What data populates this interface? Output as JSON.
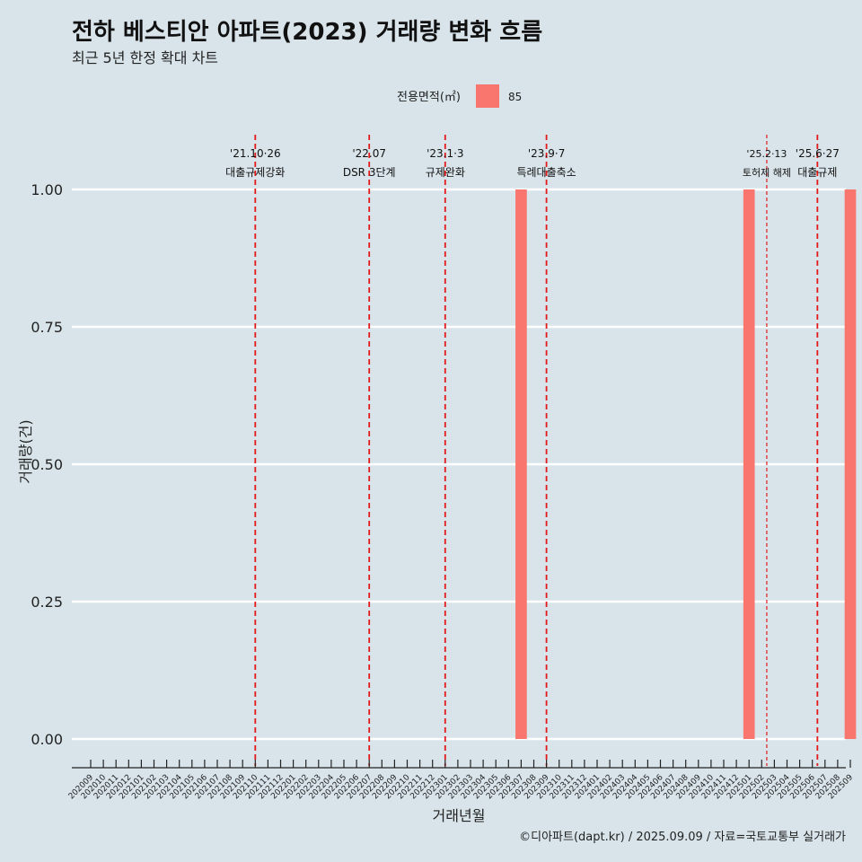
{
  "chart_data": {
    "type": "bar",
    "title": "전하 베스티안 아파트(2023) 거래량 변화 흐름",
    "subtitle": "최근 5년 한정 확대 차트",
    "xlabel": "거래년월",
    "ylabel": "거래량(건)",
    "ylim": [
      0,
      1
    ],
    "yticks": [
      "0.00",
      "0.25",
      "0.50",
      "0.75",
      "1.00"
    ],
    "grid": true,
    "legend": {
      "title": "전용면적(㎡)",
      "position": "top",
      "entries": [
        {
          "name": "85",
          "color": "#f8766d"
        }
      ]
    },
    "categories": [
      "202009",
      "202010",
      "202011",
      "202012",
      "202101",
      "202102",
      "202103",
      "202104",
      "202105",
      "202106",
      "202107",
      "202108",
      "202109",
      "202110",
      "202111",
      "202112",
      "202201",
      "202202",
      "202203",
      "202204",
      "202205",
      "202206",
      "202207",
      "202208",
      "202209",
      "202210",
      "202211",
      "202212",
      "202301",
      "202302",
      "202303",
      "202304",
      "202305",
      "202306",
      "202307",
      "202308",
      "202309",
      "202310",
      "202311",
      "202312",
      "202401",
      "202402",
      "202403",
      "202404",
      "202405",
      "202406",
      "202407",
      "202408",
      "202409",
      "202410",
      "202411",
      "202412",
      "202501",
      "202502",
      "202503",
      "202504",
      "202505",
      "202506",
      "202507",
      "202508",
      "202509"
    ],
    "series": [
      {
        "name": "85",
        "color": "#f8766d",
        "values": [
          0,
          0,
          0,
          0,
          0,
          0,
          0,
          0,
          0,
          0,
          0,
          0,
          0,
          0,
          0,
          0,
          0,
          0,
          0,
          0,
          0,
          0,
          0,
          0,
          0,
          0,
          0,
          0,
          0,
          0,
          0,
          0,
          0,
          0,
          1,
          0,
          0,
          0,
          0,
          0,
          0,
          0,
          0,
          0,
          0,
          0,
          0,
          0,
          0,
          0,
          0,
          0,
          1,
          0,
          0,
          0,
          0,
          0,
          0,
          0,
          1
        ]
      }
    ],
    "annotations": [
      {
        "x": 13.0,
        "date": "'21.10·26",
        "label": "대출규제강화",
        "style": "dashed",
        "small": false
      },
      {
        "x": 22.0,
        "date": "'22.07",
        "label": "DSR 3단계",
        "style": "dashed",
        "small": false
      },
      {
        "x": 28.0,
        "date": "'23.1·3",
        "label": "규제완화",
        "style": "dashed",
        "small": false
      },
      {
        "x": 36.0,
        "date": "'23.9·7",
        "label": "특례대출축소",
        "style": "dashed",
        "small": false
      },
      {
        "x": 53.4,
        "date": "'25.2·13",
        "label": "토허제 해제",
        "style": "dotted",
        "small": true
      },
      {
        "x": 57.4,
        "date": "'25.6·27",
        "label": "대출규제",
        "style": "dashed",
        "small": false
      }
    ],
    "annotation_color": "#e31a1c",
    "caption": "©디아파트(dapt.kr) / 2025.09.09 / 자료=국토교통부 실거래가"
  }
}
